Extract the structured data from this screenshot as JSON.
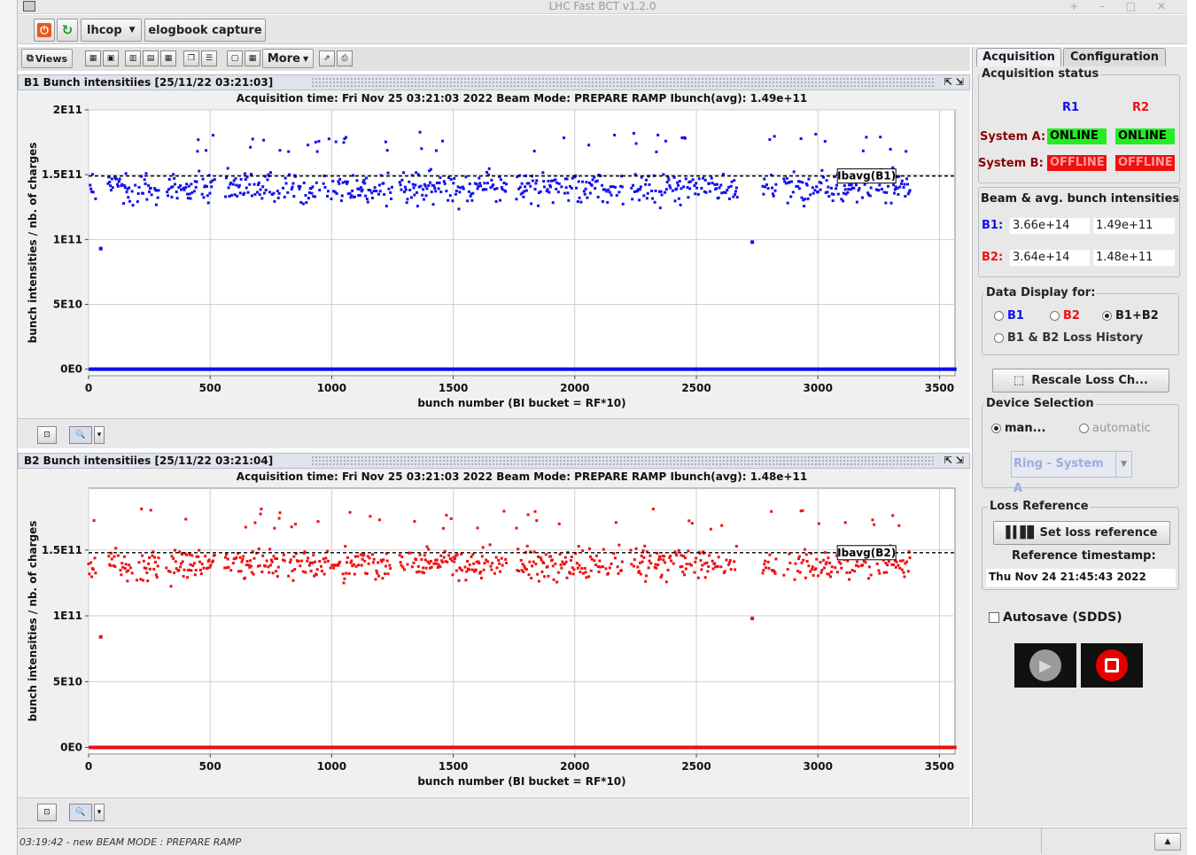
{
  "window": {
    "title": "LHC Fast BCT v1.2.0"
  },
  "toolbar": {
    "context_label": "lhcop",
    "context_dropdown_icon": "chevron-down-icon",
    "elogbook_label": "elogbook capture",
    "views_label": "Views",
    "more_label": "More"
  },
  "charts_panel": [
    {
      "header": "B1 Bunch intensitiies  [25/11/22 03:21:03]",
      "subtitle": "Acquisition time: Fri Nov 25 03:21:03 2022  Beam Mode: PREPARE RAMP   Ibunch(avg): 1.49e+11",
      "avg_label": "Ibavg(B1)",
      "color": "#1010ee"
    },
    {
      "header": "B2 Bunch intensitiies  [25/11/22 03:21:04]",
      "subtitle": "Acquisition time: Fri Nov 25 03:21:03 2022  Beam Mode: PREPARE RAMP   Ibunch(avg): 1.48e+11",
      "avg_label": "Ibavg(B2)",
      "color": "#ee1010"
    }
  ],
  "chart_data": [
    {
      "type": "scatter",
      "title": "Acquisition time: Fri Nov 25 03:21:03 2022  Beam Mode: PREPARE RAMP   Ibunch(avg): 1.49e+11",
      "xlabel": "bunch number (BI bucket = RF*10)",
      "ylabel": "bunch intensities / nb. of charges",
      "xlim": [
        0,
        3564
      ],
      "ylim": [
        -5000000000.0,
        200000000000.0
      ],
      "xticks": [
        0,
        500,
        1000,
        1500,
        2000,
        2500,
        3000,
        3500
      ],
      "xtick_labels": [
        "0",
        "500",
        "1000",
        "1500",
        "2000",
        "2500",
        "3000",
        "3500"
      ],
      "yticks": [
        0,
        50000000000.0,
        100000000000.0,
        150000000000.0,
        200000000000.0
      ],
      "ytick_labels": [
        "0E0",
        "5E10",
        "1E11",
        "1.5E11",
        "2E11"
      ],
      "avg_line": 149000000000.0,
      "series_color": "#1010ee",
      "filled_trains": [
        [
          0,
          30
        ],
        [
          80,
          290
        ],
        [
          320,
          520
        ],
        [
          560,
          790
        ],
        [
          800,
          1250
        ],
        [
          1280,
          1720
        ],
        [
          1760,
          2200
        ],
        [
          2230,
          2670
        ],
        [
          2770,
          2830
        ],
        [
          2860,
          3380
        ]
      ],
      "isolated_points": [
        {
          "x": 50,
          "y": 93000000000.0
        },
        {
          "x": 2730,
          "y": 98000000000.0
        }
      ],
      "grid": true
    },
    {
      "type": "scatter",
      "title": "Acquisition time: Fri Nov 25 03:21:03 2022  Beam Mode: PREPARE RAMP   Ibunch(avg): 1.48e+11",
      "xlabel": "bunch number (BI bucket = RF*10)",
      "ylabel": "bunch intensities / nb. of charges",
      "xlim": [
        0,
        3564
      ],
      "ylim": [
        -5000000000.0,
        197000000000.0
      ],
      "xticks": [
        0,
        500,
        1000,
        1500,
        2000,
        2500,
        3000,
        3500
      ],
      "xtick_labels": [
        "0",
        "500",
        "1000",
        "1500",
        "2000",
        "2500",
        "3000",
        "3500"
      ],
      "yticks": [
        0,
        50000000000.0,
        100000000000.0,
        150000000000.0
      ],
      "ytick_labels": [
        "0E0",
        "5E10",
        "1E11",
        "1.5E11"
      ],
      "avg_line": 148000000000.0,
      "series_color": "#ee1010",
      "filled_trains": [
        [
          0,
          30
        ],
        [
          80,
          290
        ],
        [
          320,
          520
        ],
        [
          560,
          790
        ],
        [
          800,
          1250
        ],
        [
          1280,
          1720
        ],
        [
          1760,
          2200
        ],
        [
          2230,
          2670
        ],
        [
          2770,
          2830
        ],
        [
          2860,
          3380
        ]
      ],
      "isolated_points": [
        {
          "x": 50,
          "y": 84000000000.0
        },
        {
          "x": 2730,
          "y": 98000000000.0
        }
      ],
      "grid": true
    }
  ],
  "sidebar": {
    "tabs": [
      "Acquisition",
      "Configuration"
    ],
    "acq_status": {
      "title": "Acquisition status",
      "col_r1": "R1",
      "col_r2": "R2",
      "row_a_label": "System A:",
      "row_b_label": "System B:",
      "a_r1": "ONLINE",
      "a_r2": "ONLINE",
      "b_r1": "OFFLINE",
      "b_r2": "OFFLINE",
      "online_color": "#22ee22",
      "offline_color": "#ee1111"
    },
    "intensities": {
      "title": "Beam & avg. bunch intensities",
      "b1_label": "B1:",
      "b1_beam": "3.66e+14",
      "b1_avg": "1.49e+11",
      "b2_label": "B2:",
      "b2_beam": "3.64e+14",
      "b2_avg": "1.48e+11"
    },
    "display": {
      "title": "Data Display for:",
      "opt_b1": "B1",
      "opt_b2": "B2",
      "opt_b1b2": "B1+B2",
      "opt_loss": "B1 & B2 Loss History",
      "selected": "B1+B2"
    },
    "rescale_button": "Rescale Loss Ch...",
    "device": {
      "title": "Device Selection",
      "opt_manual": "man...",
      "opt_auto": "automatic",
      "select_value": "Ring - System A"
    },
    "loss_ref": {
      "title": "Loss Reference",
      "button": "Set loss reference",
      "ts_label": "Reference timestamp:",
      "ts_value": "Thu Nov 24 21:45:43 2022"
    },
    "autosave_label": "Autosave (SDDS)"
  },
  "statusbar": {
    "message": "03:19:42 - new BEAM MODE : PREPARE RAMP"
  }
}
